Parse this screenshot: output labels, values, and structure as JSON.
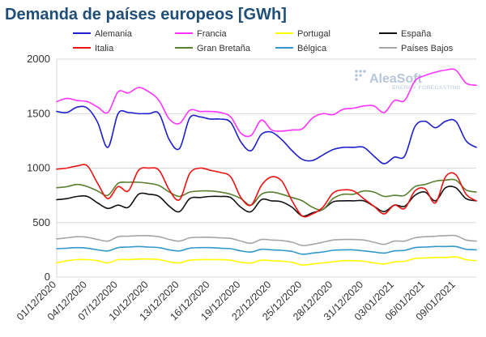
{
  "chart_data": {
    "type": "line",
    "title": "Demanda de países europeos [GWh]",
    "xlabel": "",
    "ylabel": "",
    "ylim": [
      0,
      2000
    ],
    "yticks": [
      0,
      500,
      1000,
      1500,
      2000
    ],
    "grid": true,
    "legend_position": "top",
    "watermark": {
      "brand": "AleaSoft",
      "tagline": "ENERGY FORECASTING"
    },
    "x": [
      "01/12/2020",
      "02/12/2020",
      "03/12/2020",
      "04/12/2020",
      "05/12/2020",
      "06/12/2020",
      "07/12/2020",
      "08/12/2020",
      "09/12/2020",
      "10/12/2020",
      "11/12/2020",
      "12/12/2020",
      "13/12/2020",
      "14/12/2020",
      "15/12/2020",
      "16/12/2020",
      "17/12/2020",
      "18/12/2020",
      "19/12/2020",
      "20/12/2020",
      "21/12/2020",
      "22/12/2020",
      "23/12/2020",
      "24/12/2020",
      "25/12/2020",
      "26/12/2020",
      "27/12/2020",
      "28/12/2020",
      "29/12/2020",
      "30/12/2020",
      "31/12/2020",
      "01/01/2021",
      "02/01/2021",
      "03/01/2021",
      "04/01/2021",
      "05/01/2021",
      "06/01/2021",
      "07/01/2021",
      "08/01/2021",
      "09/01/2021",
      "10/01/2021",
      "11/01/2021"
    ],
    "x_tick_labels": [
      "01/12/2020",
      "04/12/2020",
      "07/12/2020",
      "10/12/2020",
      "13/12/2020",
      "16/12/2020",
      "19/12/2020",
      "22/12/2020",
      "25/12/2020",
      "28/12/2020",
      "31/12/2020",
      "03/01/2021",
      "06/01/2021",
      "09/01/2021"
    ],
    "series": [
      {
        "name": "Alemania",
        "color": "#1f1fcc",
        "values": [
          1520,
          1510,
          1560,
          1550,
          1420,
          1190,
          1500,
          1510,
          1500,
          1500,
          1500,
          1260,
          1180,
          1460,
          1470,
          1450,
          1450,
          1420,
          1240,
          1160,
          1310,
          1330,
          1260,
          1160,
          1080,
          1070,
          1120,
          1170,
          1190,
          1190,
          1190,
          1110,
          1040,
          1100,
          1110,
          1380,
          1430,
          1370,
          1430,
          1430,
          1250,
          1190
        ]
      },
      {
        "name": "Francia",
        "color": "#ff33ff",
        "values": [
          1610,
          1640,
          1620,
          1610,
          1560,
          1510,
          1700,
          1690,
          1740,
          1700,
          1620,
          1450,
          1410,
          1530,
          1520,
          1520,
          1510,
          1470,
          1320,
          1300,
          1440,
          1350,
          1340,
          1350,
          1360,
          1460,
          1500,
          1490,
          1540,
          1550,
          1570,
          1570,
          1510,
          1620,
          1620,
          1800,
          1850,
          1880,
          1900,
          1900,
          1780,
          1760
        ]
      },
      {
        "name": "Portugal",
        "color": "#ffff00",
        "values": [
          130,
          150,
          160,
          160,
          150,
          130,
          160,
          160,
          165,
          165,
          160,
          140,
          130,
          155,
          160,
          160,
          160,
          155,
          135,
          130,
          155,
          150,
          145,
          135,
          110,
          120,
          130,
          140,
          150,
          150,
          145,
          130,
          120,
          140,
          145,
          170,
          175,
          180,
          180,
          185,
          160,
          150
        ]
      },
      {
        "name": "España",
        "color": "#111111",
        "values": [
          710,
          720,
          740,
          740,
          680,
          630,
          660,
          640,
          760,
          760,
          740,
          650,
          600,
          720,
          730,
          740,
          740,
          730,
          640,
          600,
          710,
          700,
          690,
          640,
          560,
          590,
          620,
          690,
          700,
          700,
          700,
          650,
          600,
          660,
          650,
          750,
          780,
          700,
          820,
          820,
          720,
          700
        ]
      },
      {
        "name": "Italia",
        "color": "#ee1111",
        "values": [
          990,
          1000,
          1020,
          1020,
          860,
          720,
          830,
          790,
          980,
          1000,
          980,
          800,
          710,
          950,
          1000,
          980,
          960,
          920,
          730,
          660,
          840,
          920,
          880,
          700,
          560,
          580,
          640,
          770,
          800,
          790,
          720,
          650,
          580,
          660,
          630,
          790,
          810,
          680,
          920,
          940,
          760,
          700
        ]
      },
      {
        "name": "Gran Bretaña",
        "color": "#5a7f30",
        "values": [
          820,
          830,
          850,
          830,
          790,
          750,
          860,
          870,
          870,
          860,
          840,
          780,
          740,
          780,
          790,
          790,
          780,
          760,
          720,
          660,
          760,
          780,
          760,
          730,
          700,
          640,
          620,
          720,
          760,
          760,
          790,
          780,
          740,
          750,
          750,
          830,
          850,
          880,
          890,
          890,
          800,
          780
        ]
      },
      {
        "name": "Bélgica",
        "color": "#3399cc",
        "values": [
          260,
          265,
          270,
          265,
          250,
          240,
          270,
          275,
          280,
          275,
          270,
          250,
          240,
          265,
          270,
          270,
          265,
          260,
          240,
          230,
          255,
          250,
          245,
          235,
          210,
          220,
          230,
          245,
          250,
          250,
          240,
          230,
          220,
          240,
          245,
          270,
          275,
          280,
          280,
          280,
          255,
          250
        ]
      },
      {
        "name": "Países Bajos",
        "color": "#a6a6a6",
        "values": [
          350,
          360,
          370,
          365,
          345,
          330,
          370,
          375,
          380,
          380,
          370,
          345,
          330,
          360,
          365,
          365,
          360,
          355,
          330,
          310,
          345,
          340,
          335,
          320,
          290,
          300,
          320,
          340,
          345,
          345,
          340,
          320,
          300,
          330,
          330,
          360,
          370,
          375,
          380,
          380,
          340,
          330
        ]
      }
    ]
  }
}
